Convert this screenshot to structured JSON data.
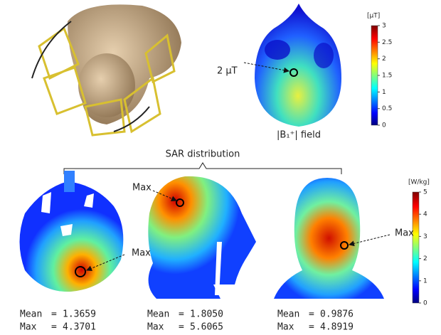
{
  "b1_map": {
    "annotation": "2 μT",
    "label": "|B₁⁺| field",
    "colorbar": {
      "unit": "[μT]",
      "ticks": [
        0,
        0.5,
        1,
        1.5,
        2,
        2.5,
        3
      ]
    }
  },
  "sar": {
    "title": "SAR distribution",
    "colorbar": {
      "unit": "[W/kg]",
      "ticks": [
        0,
        1,
        2,
        3,
        4,
        5
      ]
    },
    "panels": [
      {
        "annotation": "Max",
        "stats": [
          {
            "label": "Mean",
            "sign": "=",
            "value": "1.3659"
          },
          {
            "label": "Max",
            "sign": "=",
            "value": "4.3701"
          }
        ]
      },
      {
        "annotation": "Max",
        "stats": [
          {
            "label": "Mean",
            "sign": "=",
            "value": "1.8050"
          },
          {
            "label": "Max",
            "sign": "=",
            "value": "5.6065"
          }
        ]
      },
      {
        "annotation": "Max",
        "stats": [
          {
            "label": "Mean",
            "sign": "=",
            "value": "0.9876"
          },
          {
            "label": "Max",
            "sign": "=",
            "value": "4.8919"
          }
        ]
      }
    ]
  }
}
